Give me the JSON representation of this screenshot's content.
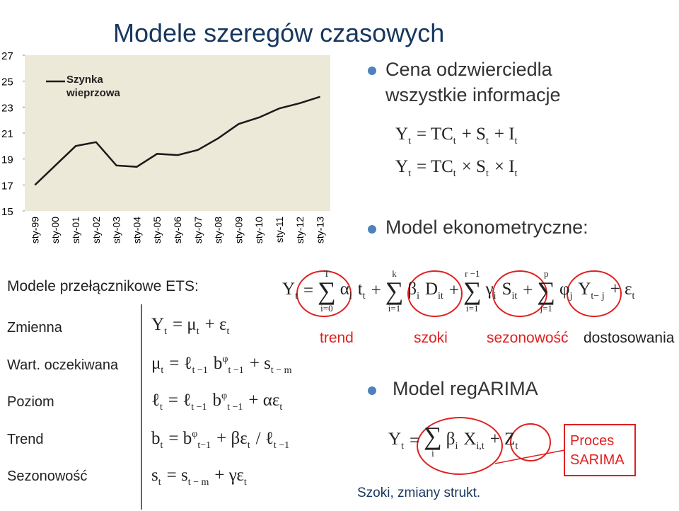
{
  "title": "Modele szeregów czasowych",
  "chart_data": {
    "type": "line",
    "categories": [
      "sty-99",
      "sty-00",
      "sty-01",
      "sty-02",
      "sty-03",
      "sty-04",
      "sty-05",
      "sty-06",
      "sty-07",
      "sty-08",
      "sty-09",
      "sty-10",
      "sty-11",
      "sty-12",
      "sty-13"
    ],
    "series": [
      {
        "name": "Szynka wieprzowa",
        "color": "#1a1a1a",
        "values": [
          17.0,
          18.5,
          20.0,
          20.3,
          18.5,
          18.4,
          19.4,
          19.3,
          19.7,
          20.6,
          21.7,
          22.2,
          22.9,
          23.3,
          23.8
        ]
      }
    ],
    "ylim": [
      15,
      27
    ],
    "yticks": [
      15,
      17,
      19,
      21,
      23,
      25,
      27
    ],
    "background": "#ece9d8"
  },
  "bullets": [
    "Cena odzwierciedla wszystkie informacje",
    "Model ekonometryczne:",
    "Model regARIMA"
  ],
  "formulas": {
    "additive": [
      {
        "b": "Y",
        "s": "t"
      },
      {
        "b": "= TC",
        "s": "t"
      },
      {
        "b": "+ S",
        "s": "t"
      },
      {
        "b": "+ I",
        "s": "t"
      }
    ],
    "multiplicative": [
      {
        "b": "Y",
        "s": "t"
      },
      {
        "b": "= TC",
        "s": "t"
      },
      {
        "b": "× S",
        "s": "t"
      },
      {
        "b": "× I",
        "s": "t"
      }
    ],
    "econometric": [
      {
        "b": "Y",
        "s": "t"
      },
      {
        "b": "="
      },
      {
        "b": "∑",
        "lo": "i=0",
        "hi": "T"
      },
      {
        "b": "α",
        "s": "i"
      },
      {
        "b": "t",
        "s": "t"
      },
      {
        "b": "+"
      },
      {
        "b": "∑",
        "lo": "i=1",
        "hi": "k"
      },
      {
        "b": "β",
        "s": "i"
      },
      {
        "b": "D",
        "s": "it"
      },
      {
        "b": "+"
      },
      {
        "b": "∑",
        "lo": "i=1",
        "hi": "r −1"
      },
      {
        "b": "γ",
        "s": "i"
      },
      {
        "b": "S",
        "s": "it"
      },
      {
        "b": "+"
      },
      {
        "b": "∑",
        "lo": "j=1",
        "hi": "p"
      },
      {
        "b": "φ",
        "s": "j"
      },
      {
        "b": "Y",
        "s": "t− j"
      },
      {
        "b": "+ ε",
        "s": "t"
      }
    ],
    "ets": [
      [
        {
          "b": "Y",
          "s": "t"
        },
        {
          "b": "= μ",
          "s": "t"
        },
        {
          "b": "+ ε",
          "s": "t"
        }
      ],
      [
        {
          "b": "μ",
          "s": "t"
        },
        {
          "b": "= ℓ",
          "s": "t −1"
        },
        {
          "b": "b",
          "s": "t −1",
          "u": "φ"
        },
        {
          "b": "+ s",
          "s": "t − m"
        }
      ],
      [
        {
          "b": "ℓ",
          "s": "t"
        },
        {
          "b": "= ℓ",
          "s": "t −1"
        },
        {
          "b": "b",
          "s": "t −1",
          "u": "φ"
        },
        {
          "b": "+ αε",
          "s": "t"
        }
      ],
      [
        {
          "b": "b",
          "s": "t"
        },
        {
          "b": "= b",
          "s": "t−1",
          "u": "φ"
        },
        {
          "b": "+ βε",
          "s": "t"
        },
        {
          "b": "/ ℓ",
          "s": "t −1"
        }
      ],
      [
        {
          "b": "s",
          "s": "t"
        },
        {
          "b": "= s",
          "s": "t − m"
        },
        {
          "b": "+ γε",
          "s": "t"
        }
      ]
    ],
    "regarima": [
      {
        "b": "Y",
        "s": "t"
      },
      {
        "b": "="
      },
      {
        "b": "∑",
        "lo": "i"
      },
      {
        "b": "β",
        "s": "i"
      },
      {
        "b": "X",
        "s": "i,t"
      },
      {
        "b": "+ Z",
        "s": "t"
      }
    ]
  },
  "components": [
    "trend",
    "szoki",
    "sezonowość",
    "dostosowania"
  ],
  "ets_heading": "Modele przełącznikowe ETS:",
  "ets_labels": [
    "Zmienna",
    "Wart. oczekiwana",
    "Poziom",
    "Trend",
    "Sezonowość"
  ],
  "sarima": "Proces SARIMA",
  "shocks": "Szoki, zmiany strukt."
}
